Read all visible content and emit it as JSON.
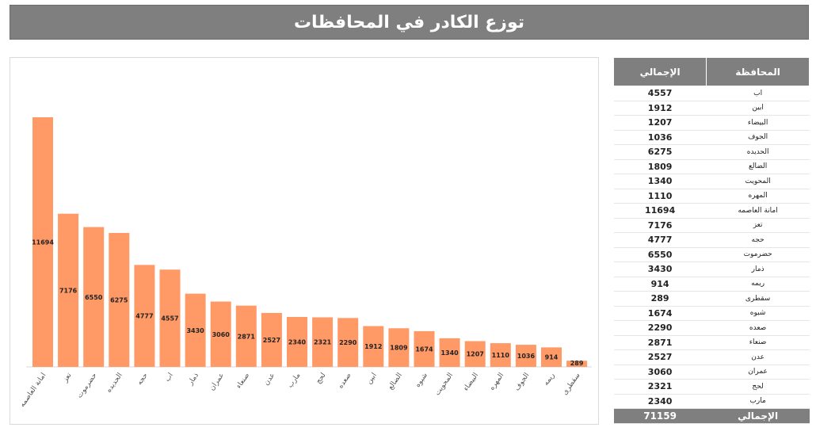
{
  "title": "توزع الكادر في المحافظات",
  "table": {
    "headers": {
      "governorate": "المحافظة",
      "total": "الإجمالي"
    },
    "rows": [
      {
        "name": "اب",
        "value": "4557"
      },
      {
        "name": "ابين",
        "value": "1912"
      },
      {
        "name": "البيضاء",
        "value": "1207"
      },
      {
        "name": "الجوف",
        "value": "1036"
      },
      {
        "name": "الحديده",
        "value": "6275"
      },
      {
        "name": "الضالع",
        "value": "1809"
      },
      {
        "name": "المحويت",
        "value": "1340"
      },
      {
        "name": "المهره",
        "value": "1110"
      },
      {
        "name": "امانة العاصمه",
        "value": "11694"
      },
      {
        "name": "تعز",
        "value": "7176"
      },
      {
        "name": "حجه",
        "value": "4777"
      },
      {
        "name": "حضرموت",
        "value": "6550"
      },
      {
        "name": "ذمار",
        "value": "3430"
      },
      {
        "name": "ريمه",
        "value": "914"
      },
      {
        "name": "سقطرى",
        "value": "289"
      },
      {
        "name": "شبوه",
        "value": "1674"
      },
      {
        "name": "صعده",
        "value": "2290"
      },
      {
        "name": "صنعاء",
        "value": "2871"
      },
      {
        "name": "عدن",
        "value": "2527"
      },
      {
        "name": "عمران",
        "value": "3060"
      },
      {
        "name": "لحج",
        "value": "2321"
      },
      {
        "name": "مارب",
        "value": "2340"
      }
    ],
    "total_label": "الإجمالي",
    "total_value": "71159"
  },
  "chart_data": {
    "type": "bar",
    "categories": [
      "امانة العاصمه",
      "تعز",
      "حضرموت",
      "الحديده",
      "حجه",
      "اب",
      "ذمار",
      "عمران",
      "صنعاء",
      "عدن",
      "مارب",
      "لحج",
      "صعده",
      "ابين",
      "الضالع",
      "شبوه",
      "المحويت",
      "البيضاء",
      "المهره",
      "الجوف",
      "ريمه",
      "سقطرى"
    ],
    "values": [
      11694,
      7176,
      6550,
      6275,
      4777,
      4557,
      3430,
      3060,
      2871,
      2527,
      2340,
      2321,
      2290,
      1912,
      1809,
      1674,
      1340,
      1207,
      1110,
      1036,
      914,
      289
    ],
    "title": "",
    "xlabel": "",
    "ylabel": "",
    "ylim": [
      0,
      11694
    ],
    "grid": false,
    "legend": "none",
    "bar_color": "#ff9966"
  }
}
